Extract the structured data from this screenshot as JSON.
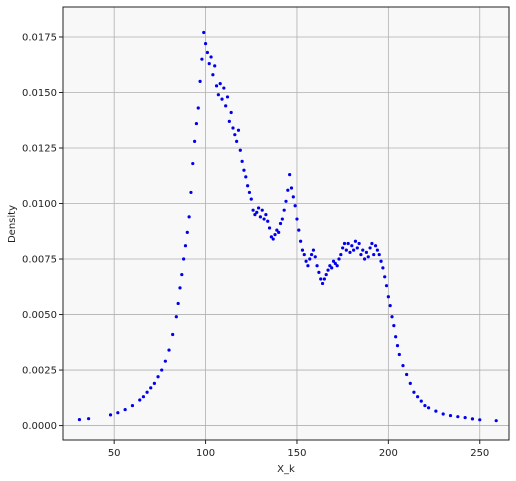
{
  "chart_data": {
    "type": "scatter",
    "title": "",
    "xlabel": "X_k",
    "ylabel": "Density",
    "xlim": [
      22,
      266
    ],
    "ylim": [
      -0.00065,
      0.01885
    ],
    "x_ticks": [
      50,
      100,
      150,
      200,
      250
    ],
    "x_tick_labels": [
      "50",
      "100",
      "150",
      "200",
      "250"
    ],
    "y_ticks": [
      0.0,
      0.0025,
      0.005,
      0.0075,
      0.01,
      0.0125,
      0.015,
      0.0175
    ],
    "y_tick_labels": [
      "0.0000",
      "0.0025",
      "0.0050",
      "0.0075",
      "0.0100",
      "0.0125",
      "0.0150",
      "0.0175"
    ],
    "grid": true,
    "legend": "none",
    "colors": {
      "points": "#0000ee",
      "plot_background": "#f8f8f8",
      "grid": "#b0b0b0"
    },
    "series": [
      {
        "points": [
          [
            31,
            0.00027
          ],
          [
            36,
            0.00031
          ],
          [
            48,
            0.00048
          ],
          [
            52,
            0.00058
          ],
          [
            56,
            0.00072
          ],
          [
            60,
            0.0009
          ],
          [
            64,
            0.00115
          ],
          [
            66,
            0.0013
          ],
          [
            68,
            0.0015
          ],
          [
            70,
            0.0017
          ],
          [
            72,
            0.0019
          ],
          [
            74,
            0.0022
          ],
          [
            76,
            0.0025
          ],
          [
            78,
            0.0029
          ],
          [
            80,
            0.0034
          ],
          [
            82,
            0.0041
          ],
          [
            84,
            0.0049
          ],
          [
            85,
            0.0055
          ],
          [
            86,
            0.0062
          ],
          [
            87,
            0.0068
          ],
          [
            88,
            0.0075
          ],
          [
            89,
            0.0081
          ],
          [
            90,
            0.0087
          ],
          [
            91,
            0.0094
          ],
          [
            92,
            0.0105
          ],
          [
            93,
            0.0118
          ],
          [
            94,
            0.0128
          ],
          [
            95,
            0.0136
          ],
          [
            96,
            0.0143
          ],
          [
            97,
            0.0155
          ],
          [
            98,
            0.0165
          ],
          [
            99,
            0.0177
          ],
          [
            100,
            0.0172
          ],
          [
            101,
            0.0168
          ],
          [
            102,
            0.0163
          ],
          [
            103,
            0.0166
          ],
          [
            104,
            0.0158
          ],
          [
            105,
            0.0162
          ],
          [
            106,
            0.0153
          ],
          [
            107,
            0.0149
          ],
          [
            108,
            0.0154
          ],
          [
            109,
            0.0147
          ],
          [
            110,
            0.0152
          ],
          [
            111,
            0.0144
          ],
          [
            112,
            0.0148
          ],
          [
            113,
            0.0137
          ],
          [
            114,
            0.0141
          ],
          [
            115,
            0.0134
          ],
          [
            116,
            0.0131
          ],
          [
            117,
            0.0128
          ],
          [
            118,
            0.0133
          ],
          [
            119,
            0.0124
          ],
          [
            120,
            0.0119
          ],
          [
            121,
            0.0115
          ],
          [
            122,
            0.0112
          ],
          [
            123,
            0.0108
          ],
          [
            124,
            0.0105
          ],
          [
            125,
            0.0102
          ],
          [
            126,
            0.0097
          ],
          [
            127,
            0.0095
          ],
          [
            128,
            0.0096
          ],
          [
            129,
            0.0098
          ],
          [
            130,
            0.0094
          ],
          [
            131,
            0.0097
          ],
          [
            132,
            0.0093
          ],
          [
            133,
            0.0095
          ],
          [
            134,
            0.0092
          ],
          [
            135,
            0.0089
          ],
          [
            136,
            0.0085
          ],
          [
            137,
            0.0084
          ],
          [
            138,
            0.0086
          ],
          [
            139,
            0.0088
          ],
          [
            140,
            0.0087
          ],
          [
            141,
            0.0091
          ],
          [
            142,
            0.0093
          ],
          [
            143,
            0.0097
          ],
          [
            144,
            0.0101
          ],
          [
            145,
            0.0106
          ],
          [
            146,
            0.0113
          ],
          [
            147,
            0.0107
          ],
          [
            148,
            0.0103
          ],
          [
            149,
            0.0099
          ],
          [
            150,
            0.0093
          ],
          [
            151,
            0.0088
          ],
          [
            152,
            0.0083
          ],
          [
            153,
            0.0079
          ],
          [
            154,
            0.0077
          ],
          [
            155,
            0.0074
          ],
          [
            156,
            0.0072
          ],
          [
            157,
            0.0075
          ],
          [
            158,
            0.0077
          ],
          [
            159,
            0.0079
          ],
          [
            160,
            0.0076
          ],
          [
            161,
            0.0072
          ],
          [
            162,
            0.0069
          ],
          [
            163,
            0.0066
          ],
          [
            164,
            0.0064
          ],
          [
            165,
            0.0066
          ],
          [
            166,
            0.0068
          ],
          [
            167,
            0.007
          ],
          [
            168,
            0.0072
          ],
          [
            169,
            0.0071
          ],
          [
            170,
            0.0074
          ],
          [
            171,
            0.0073
          ],
          [
            172,
            0.0072
          ],
          [
            173,
            0.0075
          ],
          [
            174,
            0.0077
          ],
          [
            175,
            0.008
          ],
          [
            176,
            0.0082
          ],
          [
            177,
            0.0079
          ],
          [
            178,
            0.0082
          ],
          [
            179,
            0.0078
          ],
          [
            180,
            0.0081
          ],
          [
            181,
            0.0079
          ],
          [
            182,
            0.0083
          ],
          [
            183,
            0.008
          ],
          [
            184,
            0.0082
          ],
          [
            185,
            0.0077
          ],
          [
            186,
            0.0079
          ],
          [
            187,
            0.0075
          ],
          [
            188,
            0.0078
          ],
          [
            189,
            0.0076
          ],
          [
            190,
            0.008
          ],
          [
            191,
            0.0082
          ],
          [
            192,
            0.0077
          ],
          [
            193,
            0.0081
          ],
          [
            194,
            0.0079
          ],
          [
            195,
            0.0077
          ],
          [
            196,
            0.0074
          ],
          [
            197,
            0.0071
          ],
          [
            198,
            0.0067
          ],
          [
            199,
            0.0063
          ],
          [
            200,
            0.0058
          ],
          [
            201,
            0.0054
          ],
          [
            202,
            0.0049
          ],
          [
            203,
            0.0045
          ],
          [
            204,
            0.004
          ],
          [
            205,
            0.0036
          ],
          [
            206,
            0.0032
          ],
          [
            208,
            0.0027
          ],
          [
            210,
            0.0023
          ],
          [
            212,
            0.0019
          ],
          [
            214,
            0.0015
          ],
          [
            216,
            0.0013
          ],
          [
            218,
            0.0011
          ],
          [
            220,
            0.0009
          ],
          [
            222,
            0.0008
          ],
          [
            226,
            0.00065
          ],
          [
            230,
            0.00052
          ],
          [
            234,
            0.00045
          ],
          [
            238,
            0.0004
          ],
          [
            242,
            0.00036
          ],
          [
            246,
            0.0003
          ],
          [
            250,
            0.00026
          ],
          [
            259,
            0.00022
          ]
        ]
      }
    ]
  }
}
